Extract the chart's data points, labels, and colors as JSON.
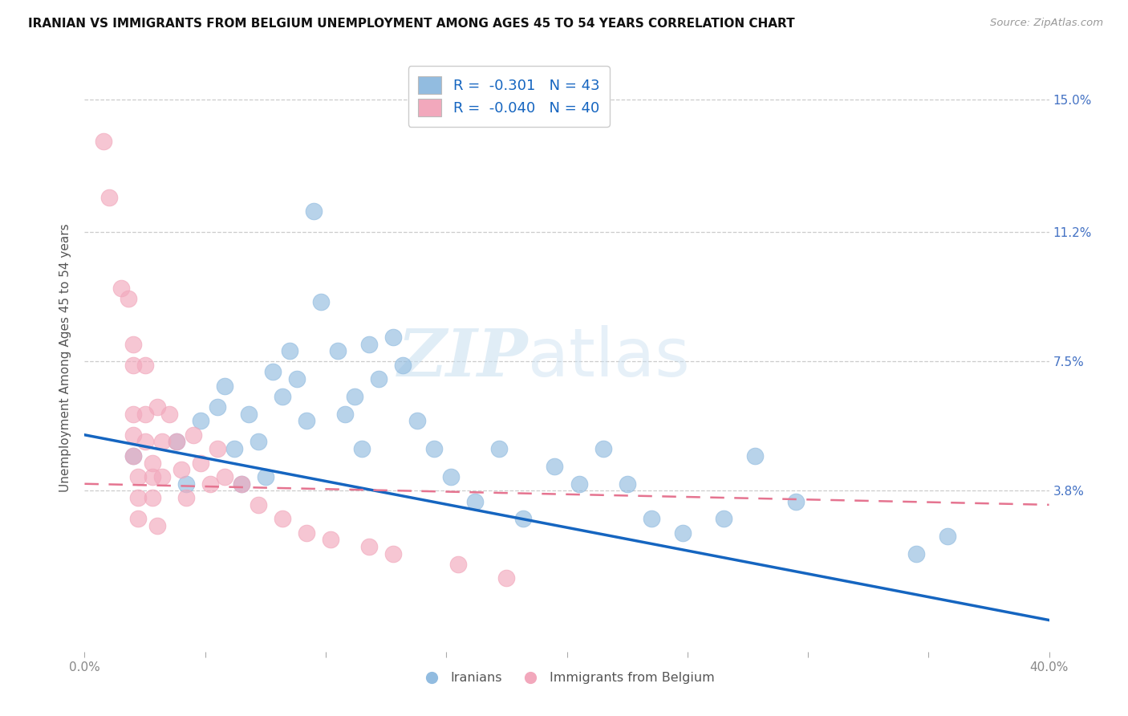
{
  "title": "IRANIAN VS IMMIGRANTS FROM BELGIUM UNEMPLOYMENT AMONG AGES 45 TO 54 YEARS CORRELATION CHART",
  "source": "Source: ZipAtlas.com",
  "ylabel": "Unemployment Among Ages 45 to 54 years",
  "ytick_values": [
    0.038,
    0.075,
    0.112,
    0.15
  ],
  "ytick_labels": [
    "3.8%",
    "7.5%",
    "11.2%",
    "15.0%"
  ],
  "xtick_values": [
    0.0,
    0.05,
    0.1,
    0.15,
    0.2,
    0.25,
    0.3,
    0.35,
    0.4
  ],
  "xmin": 0.0,
  "xmax": 0.4,
  "ymin": -0.008,
  "ymax": 0.16,
  "legend_r1": "R =  -0.301",
  "legend_n1": "N = 43",
  "legend_r2": "R =  -0.040",
  "legend_n2": "N = 40",
  "color_blue": "#92bce0",
  "color_pink": "#f2a8bc",
  "line_blue": "#1565c0",
  "line_pink": "#e57490",
  "watermark_zip": "ZIP",
  "watermark_atlas": "atlas",
  "blue_line_x0": 0.0,
  "blue_line_y0": 0.054,
  "blue_line_x1": 0.4,
  "blue_line_y1": 0.001,
  "pink_line_x0": 0.0,
  "pink_line_y0": 0.04,
  "pink_line_x1": 0.4,
  "pink_line_y1": 0.034,
  "blue_scatter_x": [
    0.02,
    0.038,
    0.042,
    0.048,
    0.055,
    0.058,
    0.062,
    0.065,
    0.068,
    0.072,
    0.075,
    0.078,
    0.082,
    0.085,
    0.088,
    0.092,
    0.095,
    0.098,
    0.105,
    0.108,
    0.112,
    0.115,
    0.118,
    0.122,
    0.128,
    0.132,
    0.138,
    0.145,
    0.152,
    0.162,
    0.172,
    0.182,
    0.195,
    0.205,
    0.215,
    0.225,
    0.235,
    0.248,
    0.265,
    0.278,
    0.295,
    0.345,
    0.358
  ],
  "blue_scatter_y": [
    0.048,
    0.052,
    0.04,
    0.058,
    0.062,
    0.068,
    0.05,
    0.04,
    0.06,
    0.052,
    0.042,
    0.072,
    0.065,
    0.078,
    0.07,
    0.058,
    0.118,
    0.092,
    0.078,
    0.06,
    0.065,
    0.05,
    0.08,
    0.07,
    0.082,
    0.074,
    0.058,
    0.05,
    0.042,
    0.035,
    0.05,
    0.03,
    0.045,
    0.04,
    0.05,
    0.04,
    0.03,
    0.026,
    0.03,
    0.048,
    0.035,
    0.02,
    0.025
  ],
  "pink_scatter_x": [
    0.008,
    0.01,
    0.015,
    0.018,
    0.02,
    0.02,
    0.02,
    0.02,
    0.02,
    0.022,
    0.022,
    0.022,
    0.025,
    0.025,
    0.025,
    0.028,
    0.028,
    0.028,
    0.03,
    0.03,
    0.032,
    0.032,
    0.035,
    0.038,
    0.04,
    0.042,
    0.045,
    0.048,
    0.052,
    0.055,
    0.058,
    0.065,
    0.072,
    0.082,
    0.092,
    0.102,
    0.118,
    0.128,
    0.155,
    0.175
  ],
  "pink_scatter_y": [
    0.138,
    0.122,
    0.096,
    0.093,
    0.08,
    0.074,
    0.06,
    0.054,
    0.048,
    0.042,
    0.036,
    0.03,
    0.074,
    0.06,
    0.052,
    0.046,
    0.042,
    0.036,
    0.028,
    0.062,
    0.052,
    0.042,
    0.06,
    0.052,
    0.044,
    0.036,
    0.054,
    0.046,
    0.04,
    0.05,
    0.042,
    0.04,
    0.034,
    0.03,
    0.026,
    0.024,
    0.022,
    0.02,
    0.017,
    0.013
  ]
}
